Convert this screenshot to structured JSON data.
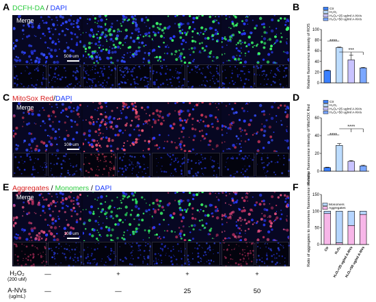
{
  "panels": {
    "A": {
      "letter": "A",
      "title_parts": [
        "DCFH-DA",
        " / ",
        "DAPI"
      ],
      "title_colors": [
        "#2ecc40",
        "#000",
        "#1f3fff"
      ],
      "merge": "Merge",
      "scale": "500 um"
    },
    "C": {
      "letter": "C",
      "title_parts": [
        "MitoSox Red",
        "/",
        "DAPI"
      ],
      "title_colors": [
        "#d92020",
        "#000",
        "#1f3fff"
      ],
      "merge": "Merge",
      "scale": "100 um"
    },
    "E": {
      "letter": "E",
      "title_parts": [
        "Aggregates",
        " / ",
        "Monomers",
        " / ",
        "DAPI"
      ],
      "title_colors": [
        "#d92020",
        "#000",
        "#2ecc40",
        "#000",
        "#1f3fff"
      ],
      "merge": "Merge",
      "scale": "100 um"
    }
  },
  "conditions": {
    "h2o2_label": "H₂O₂",
    "h2o2_unit": "(200 uM)",
    "anvs_label": "A-NVs",
    "anvs_unit": "(ug/mL)",
    "h2o2_values": [
      "—",
      "+",
      "+",
      "+"
    ],
    "anvs_values": [
      "—",
      "—",
      "25",
      "50"
    ]
  },
  "chart_data": [
    {
      "panel": "B",
      "type": "bar",
      "ylabel": "Relative fluorescence intensity of ROS",
      "ylim": [
        0,
        100
      ],
      "yticks": [
        "0",
        "20",
        "40",
        "60",
        "80",
        "100"
      ],
      "legend": [
        "Ctr",
        "H₂O₂",
        "H₂O₂+25 ug/ml A-NVs",
        "H₂O₂+50 ug/ml A-NVs"
      ],
      "categories": [
        "Ctr",
        "H₂O₂",
        "H₂O₂+25 ug/ml A-NVs",
        "H₂O₂+50 ug/ml A-NVs"
      ],
      "values": [
        23,
        66,
        43,
        28
      ],
      "errors": [
        1,
        1,
        9,
        1
      ],
      "colors": [
        "#3b80ff",
        "#bcdcff",
        "#c9c3ff",
        "#7ba7ff"
      ],
      "significance": [
        "****",
        "***"
      ]
    },
    {
      "panel": "D",
      "type": "bar",
      "ylabel": "Relative fluorescence intensity of MitoSOX Red",
      "ylim": [
        0,
        60
      ],
      "yticks": [
        "0",
        "20",
        "40",
        "60"
      ],
      "legend": [
        "Ctr",
        "H₂O₂",
        "H₂O₂+25 ug/ml A-NVs",
        "H₂O₂+50 ug/ml A-NVs"
      ],
      "categories": [
        "Ctr",
        "H₂O₂",
        "H₂O₂+25 ug/ml A-NVs",
        "H₂O₂+50 ug/ml A-NVs"
      ],
      "values": [
        4,
        29,
        11,
        6
      ],
      "errors": [
        0.5,
        2,
        1,
        0.8
      ],
      "colors": [
        "#3b80ff",
        "#bcdcff",
        "#c9c3ff",
        "#7ba7ff"
      ],
      "significance": [
        "****",
        "****"
      ]
    },
    {
      "panel": "F",
      "type": "bar",
      "ylabel": "Ratio of aggregates to monomers fluorescence intensity",
      "ylim": [
        0,
        150
      ],
      "yticks": [
        "0",
        "50",
        "100",
        "150"
      ],
      "legend": [
        "Monomers",
        "Aggregates"
      ],
      "categories": [
        "Ctr",
        "H₂O₂",
        "H₂O₂+25 ug/ml A-NVs",
        "H₂O₂+50 ug/ml A-NVs"
      ],
      "series": [
        {
          "name": "Aggregates",
          "values": [
            93,
            5,
            57,
            90
          ],
          "color": "#f7b6e8"
        },
        {
          "name": "Monomers",
          "values": [
            7,
            95,
            43,
            10
          ],
          "color": "#b5d5ff"
        }
      ]
    }
  ]
}
